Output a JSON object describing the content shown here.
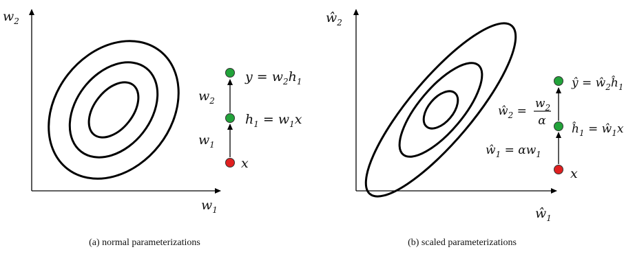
{
  "panels": [
    {
      "caption": "(a)  normal parameterizations",
      "axes": {
        "x": "w",
        "x_sub": "1",
        "y": "w",
        "y_sub": "2"
      },
      "chain_nodes": [
        {
          "name": "x",
          "label": "x",
          "color": "#e02020"
        },
        {
          "name": "h1",
          "label": "h",
          "label_sub": "1",
          "eq": " = w",
          "eq_sub": "1",
          "eq_tail": "x",
          "color": "#22a33a"
        },
        {
          "name": "y",
          "label": "y = w",
          "label_sub": "2",
          "eq": "h",
          "eq_sub": "1",
          "color": "#22a33a"
        }
      ],
      "edges": [
        {
          "label": "w",
          "label_sub": "1"
        },
        {
          "label": "w",
          "label_sub": "2"
        }
      ]
    },
    {
      "caption": "(b)  scaled parameterizations",
      "axes": {
        "x": "ŵ",
        "x_sub": "1",
        "y": "ŵ",
        "y_sub": "2"
      },
      "chain_nodes": [
        {
          "name": "x",
          "label": "x",
          "color": "#e02020"
        },
        {
          "name": "h1",
          "label": "ĥ",
          "label_sub": "1",
          "eq": " = ŵ",
          "eq_sub": "1",
          "eq_tail": "x",
          "color": "#22a33a"
        },
        {
          "name": "y",
          "label": "ŷ = ŵ",
          "label_sub": "2",
          "eq": "ĥ",
          "eq_sub": "1",
          "color": "#22a33a"
        }
      ],
      "edges": [
        {
          "label": "ŵ",
          "label_sub": "1",
          "rhs": " = αw",
          "rhs_sub": "1"
        },
        {
          "label": "ŵ",
          "label_sub": "2",
          "frac_num": "w",
          "frac_num_sub": "2",
          "frac_den": "α"
        }
      ]
    }
  ]
}
